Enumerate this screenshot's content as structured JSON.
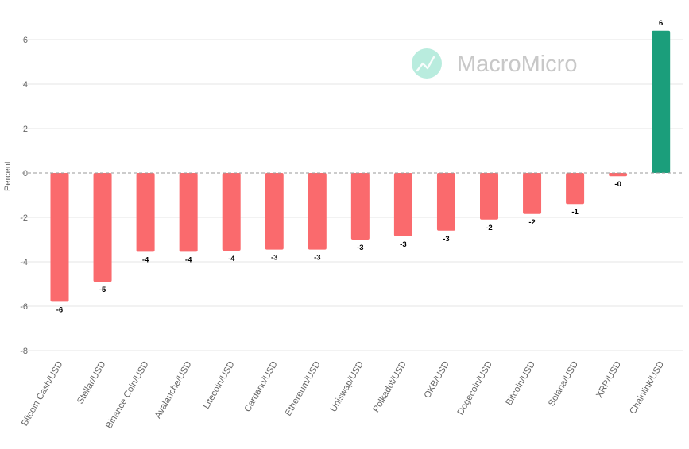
{
  "watermark": "MacroMicro",
  "chart_data": {
    "type": "bar",
    "ylabel": "Percent",
    "ylim": [
      -8,
      7
    ],
    "yticks": [
      -8,
      -6,
      -4,
      -2,
      0,
      2,
      4,
      6
    ],
    "grid": true,
    "categories": [
      "Bitcoin Cash/USD",
      "Stellar/USD",
      "Binance Coin/USD",
      "Avalanche/USD",
      "Litecoin/USD",
      "Cardano/USD",
      "Ethereum/USD",
      "Uniswap/USD",
      "Polkadot/USD",
      "OKB/USD",
      "Dogecoin/USD",
      "Bitcoin/USD",
      "Solana/USD",
      "XRP/USD",
      "Chainlink/USD"
    ],
    "values": [
      -5.8,
      -4.9,
      -3.55,
      -3.55,
      -3.5,
      -3.45,
      -3.45,
      -3.0,
      -2.85,
      -2.6,
      -2.1,
      -1.85,
      -1.4,
      -0.15,
      6.4
    ],
    "data_labels": [
      "-6",
      "-5",
      "-4",
      "-4",
      "-4",
      "-3",
      "-3",
      "-3",
      "-3",
      "-3",
      "-2",
      "-2",
      "-1",
      "-0",
      "6"
    ],
    "colors": {
      "negative": "#fa6a6d",
      "positive": "#1b9e7b",
      "watermark_logo": "#7fdcc2"
    }
  }
}
